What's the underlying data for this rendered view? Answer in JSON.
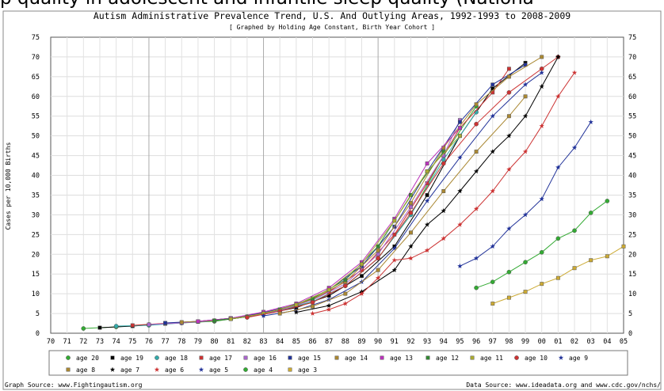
{
  "banner_text": "p quality in adolescent and infantile sleep quality (Nationa",
  "chart_data": {
    "type": "line",
    "title": "Autism Administrative Prevalence Trend, U.S. And Outlying Areas, 1992-1993 to 2008-2009",
    "subtitle": "[ Graphed by Holding Age Constant, Birth Year Cohort ]",
    "ylabel": "Cases per 10,000 Births",
    "xlabel": "",
    "ylim": [
      0,
      75
    ],
    "yticks": [
      0,
      5,
      10,
      15,
      20,
      25,
      30,
      35,
      40,
      45,
      50,
      55,
      60,
      65,
      70,
      75
    ],
    "x": [
      "70",
      "71",
      "72",
      "73",
      "74",
      "75",
      "76",
      "77",
      "78",
      "79",
      "80",
      "81",
      "82",
      "83",
      "84",
      "85",
      "86",
      "87",
      "88",
      "89",
      "90",
      "91",
      "92",
      "93",
      "94",
      "95",
      "96",
      "97",
      "98",
      "99",
      "00",
      "01",
      "02",
      "03",
      "04",
      "05"
    ],
    "grid": true,
    "legend_position": "bottom",
    "source_left": "Graph Source: www.Fightingautism.org",
    "source_right": "Data Source: www.ideadata.org and www.cdc.gov/nchs/",
    "series": [
      {
        "name": "age 20",
        "color": "#33aa33",
        "marker": "circle",
        "points": [
          [
            72,
            1.2
          ],
          [
            74,
            1.6
          ],
          [
            76,
            2.2
          ],
          [
            78,
            2.6
          ],
          [
            80,
            3.0
          ],
          [
            82,
            4.2
          ],
          [
            84,
            5.8
          ],
          [
            86,
            8.0
          ],
          [
            88,
            12.0
          ],
          [
            90,
            19.0
          ],
          [
            92,
            30.0
          ],
          [
            94,
            45.0
          ],
          [
            96,
            57.5
          ]
        ]
      },
      {
        "name": "age 19",
        "color": "#000000",
        "marker": "square",
        "points": [
          [
            73,
            1.4
          ],
          [
            75,
            1.8
          ],
          [
            77,
            2.4
          ],
          [
            79,
            2.9
          ],
          [
            81,
            3.6
          ],
          [
            83,
            4.8
          ],
          [
            85,
            6.5
          ],
          [
            87,
            9.5
          ],
          [
            89,
            14.5
          ],
          [
            91,
            22.0
          ],
          [
            93,
            35.0
          ],
          [
            95,
            50.0
          ],
          [
            97,
            62.0
          ],
          [
            99,
            68.5
          ]
        ]
      },
      {
        "name": "age 18",
        "color": "#33aaaa",
        "marker": "circle",
        "points": [
          [
            74,
            1.8
          ],
          [
            76,
            2.0
          ],
          [
            78,
            2.6
          ],
          [
            80,
            3.2
          ],
          [
            82,
            4.2
          ],
          [
            84,
            5.8
          ],
          [
            86,
            8.0
          ],
          [
            88,
            12.0
          ],
          [
            90,
            19.0
          ],
          [
            92,
            30.0
          ],
          [
            94,
            44.0
          ],
          [
            96,
            56.0
          ]
        ]
      },
      {
        "name": "age 17",
        "color": "#cc3333",
        "marker": "square",
        "points": [
          [
            75,
            2.0
          ],
          [
            77,
            2.5
          ],
          [
            79,
            3.0
          ],
          [
            81,
            3.8
          ],
          [
            83,
            5.2
          ],
          [
            85,
            7.0
          ],
          [
            87,
            10.5
          ],
          [
            89,
            16.0
          ],
          [
            91,
            25.0
          ],
          [
            93,
            38.0
          ],
          [
            95,
            52.0
          ],
          [
            97,
            61.0
          ],
          [
            98,
            67.0
          ]
        ]
      },
      {
        "name": "age 16",
        "color": "#aa66cc",
        "marker": "square",
        "points": [
          [
            76,
            2.2
          ],
          [
            78,
            2.6
          ],
          [
            80,
            3.2
          ],
          [
            82,
            4.2
          ],
          [
            84,
            5.8
          ],
          [
            86,
            8.4
          ],
          [
            88,
            12.5
          ],
          [
            90,
            20.0
          ],
          [
            92,
            32.0
          ],
          [
            94,
            45.0
          ],
          [
            95,
            54.0
          ]
        ]
      },
      {
        "name": "age 15",
        "color": "#223399",
        "marker": "square",
        "points": [
          [
            77,
            2.6
          ],
          [
            79,
            3.0
          ],
          [
            81,
            3.8
          ],
          [
            83,
            5.2
          ],
          [
            85,
            7.2
          ],
          [
            87,
            11.0
          ],
          [
            89,
            17.0
          ],
          [
            91,
            27.0
          ],
          [
            93,
            41.0
          ],
          [
            95,
            53.5
          ],
          [
            97,
            63.0
          ],
          [
            99,
            68.0
          ]
        ]
      },
      {
        "name": "age 14",
        "color": "#aa8833",
        "marker": "square",
        "points": [
          [
            78,
            2.8
          ],
          [
            80,
            3.2
          ],
          [
            82,
            4.2
          ],
          [
            84,
            6.0
          ],
          [
            86,
            8.6
          ],
          [
            88,
            13.0
          ],
          [
            90,
            21.0
          ],
          [
            92,
            33.0
          ],
          [
            94,
            47.0
          ],
          [
            96,
            58.0
          ],
          [
            98,
            65.0
          ],
          [
            100,
            70.0
          ]
        ]
      },
      {
        "name": "age 13",
        "color": "#bb33bb",
        "marker": "square",
        "points": [
          [
            79,
            3.0
          ],
          [
            81,
            3.8
          ],
          [
            83,
            5.4
          ],
          [
            85,
            7.5
          ],
          [
            87,
            11.5
          ],
          [
            89,
            18.0
          ],
          [
            91,
            29.0
          ],
          [
            93,
            43.0
          ],
          [
            95,
            52.0
          ]
        ]
      },
      {
        "name": "age 12",
        "color": "#338833",
        "marker": "square",
        "points": [
          [
            80,
            3.2
          ],
          [
            82,
            4.2
          ],
          [
            84,
            6.0
          ],
          [
            86,
            8.8
          ],
          [
            88,
            13.5
          ],
          [
            90,
            22.0
          ],
          [
            92,
            35.0
          ],
          [
            94,
            46.0
          ]
        ]
      },
      {
        "name": "age 11",
        "color": "#aaaa33",
        "marker": "square",
        "points": [
          [
            81,
            3.6
          ],
          [
            83,
            5.0
          ],
          [
            85,
            7.2
          ],
          [
            87,
            11.0
          ],
          [
            89,
            17.5
          ],
          [
            91,
            28.5
          ],
          [
            93,
            41.0
          ],
          [
            95,
            50.0
          ]
        ]
      },
      {
        "name": "age 10",
        "color": "#cc3333",
        "marker": "circle",
        "points": [
          [
            82,
            4.0
          ],
          [
            84,
            5.6
          ],
          [
            86,
            7.8
          ],
          [
            88,
            12.0
          ],
          [
            90,
            19.0
          ],
          [
            92,
            30.5
          ],
          [
            94,
            43.0
          ],
          [
            96,
            53.0
          ],
          [
            98,
            61.0
          ],
          [
            100,
            67.0
          ],
          [
            101,
            70.0
          ]
        ]
      },
      {
        "name": "age 9",
        "color": "#223399",
        "marker": "star",
        "points": [
          [
            83,
            4.4
          ],
          [
            85,
            5.8
          ],
          [
            87,
            8.5
          ],
          [
            89,
            13.0
          ],
          [
            91,
            21.5
          ],
          [
            93,
            33.5
          ],
          [
            95,
            44.5
          ],
          [
            97,
            55.0
          ],
          [
            99,
            63.0
          ],
          [
            100,
            66.0
          ]
        ]
      },
      {
        "name": "age 8",
        "color": "#aa8833",
        "marker": "square",
        "points": [
          [
            84,
            5.0
          ],
          [
            86,
            6.8
          ],
          [
            88,
            10.0
          ],
          [
            90,
            16.0
          ],
          [
            92,
            25.5
          ],
          [
            94,
            36.0
          ],
          [
            96,
            46.0
          ],
          [
            98,
            55.0
          ],
          [
            99,
            60.0
          ]
        ]
      },
      {
        "name": "age 7",
        "color": "#000000",
        "marker": "star",
        "points": [
          [
            85,
            5.3
          ],
          [
            87,
            7.0
          ],
          [
            89,
            10.5
          ],
          [
            91,
            16.0
          ],
          [
            92,
            22.0
          ],
          [
            93,
            27.5
          ],
          [
            94,
            31.0
          ],
          [
            95,
            36.0
          ],
          [
            96,
            41.0
          ],
          [
            97,
            46.0
          ],
          [
            98,
            50.0
          ],
          [
            99,
            55.0
          ],
          [
            100,
            62.5
          ],
          [
            101,
            70.0
          ]
        ]
      },
      {
        "name": "age 6",
        "color": "#cc3333",
        "marker": "star",
        "points": [
          [
            86,
            5.0
          ],
          [
            87,
            6.0
          ],
          [
            88,
            7.5
          ],
          [
            89,
            10.0
          ],
          [
            90,
            14.0
          ],
          [
            91,
            18.5
          ],
          [
            92,
            19.0
          ],
          [
            93,
            21.0
          ],
          [
            94,
            24.0
          ],
          [
            95,
            27.5
          ],
          [
            96,
            31.5
          ],
          [
            97,
            36.0
          ],
          [
            98,
            41.5
          ],
          [
            99,
            46.0
          ],
          [
            100,
            52.5
          ],
          [
            101,
            60.0
          ],
          [
            102,
            66.0
          ]
        ]
      },
      {
        "name": "age 5",
        "color": "#223399",
        "marker": "star",
        "points": [
          [
            95,
            17.0
          ],
          [
            96,
            19.0
          ],
          [
            97,
            22.0
          ],
          [
            98,
            26.5
          ],
          [
            99,
            30.0
          ],
          [
            100,
            34.0
          ],
          [
            101,
            42.0
          ],
          [
            102,
            47.0
          ],
          [
            103,
            53.5
          ]
        ]
      },
      {
        "name": "age 4",
        "color": "#33aa33",
        "marker": "circle",
        "points": [
          [
            96,
            11.5
          ],
          [
            97,
            13.0
          ],
          [
            98,
            15.5
          ],
          [
            99,
            18.0
          ],
          [
            100,
            20.5
          ],
          [
            101,
            24.0
          ],
          [
            102,
            26.0
          ],
          [
            103,
            30.5
          ],
          [
            104,
            33.5
          ]
        ]
      },
      {
        "name": "age 3",
        "color": "#ccaa33",
        "marker": "square",
        "points": [
          [
            97,
            7.5
          ],
          [
            98,
            9.0
          ],
          [
            99,
            10.5
          ],
          [
            100,
            12.5
          ],
          [
            101,
            14.0
          ],
          [
            102,
            16.5
          ],
          [
            103,
            18.5
          ],
          [
            104,
            19.5
          ],
          [
            105,
            22.0
          ]
        ]
      }
    ]
  }
}
